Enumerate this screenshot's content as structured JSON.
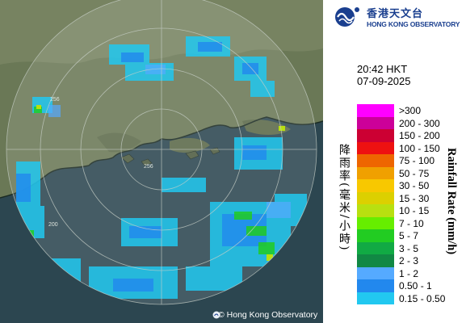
{
  "logo": {
    "name_zh": "香港天文台",
    "name_en": "HONG KONG OBSERVATORY"
  },
  "timestamp": {
    "time": "20:42 HKT",
    "date": "07-09-2025"
  },
  "legend": {
    "title_zh": "降雨率(毫米/小時)",
    "title_en": "Rainfall Rate (mm/h)",
    "levels": [
      {
        "label": ">300",
        "color": "#ff00ff"
      },
      {
        "label": "200 - 300",
        "color": "#cc0099"
      },
      {
        "label": "150 - 200",
        "color": "#cc0033"
      },
      {
        "label": "100 - 150",
        "color": "#ee1111"
      },
      {
        "label": "75 - 100",
        "color": "#ee6600"
      },
      {
        "label": "50 - 75",
        "color": "#f0a000"
      },
      {
        "label": "30 - 50",
        "color": "#f8c800"
      },
      {
        "label": "15 - 30",
        "color": "#dcd000"
      },
      {
        "label": "10 - 15",
        "color": "#b8e010"
      },
      {
        "label": "7 - 10",
        "color": "#66ee00"
      },
      {
        "label": "5 - 7",
        "color": "#22cc22"
      },
      {
        "label": "3 - 5",
        "color": "#11aa44"
      },
      {
        "label": "2 - 3",
        "color": "#118844"
      },
      {
        "label": "1 - 2",
        "color": "#55aaff"
      },
      {
        "label": "0.50 - 1",
        "color": "#2288ee"
      },
      {
        "label": "0.15 - 0.50",
        "color": "#22c8f0"
      }
    ]
  },
  "map": {
    "range_rings": [
      {
        "label": "256"
      },
      {
        "label": "200"
      },
      {
        "label": "256"
      }
    ],
    "copyright": "© Hong Kong Observatory",
    "colors": {
      "land": "#6e7a5a",
      "sea": "#3a5a68",
      "coast": "#1a2a22"
    }
  }
}
